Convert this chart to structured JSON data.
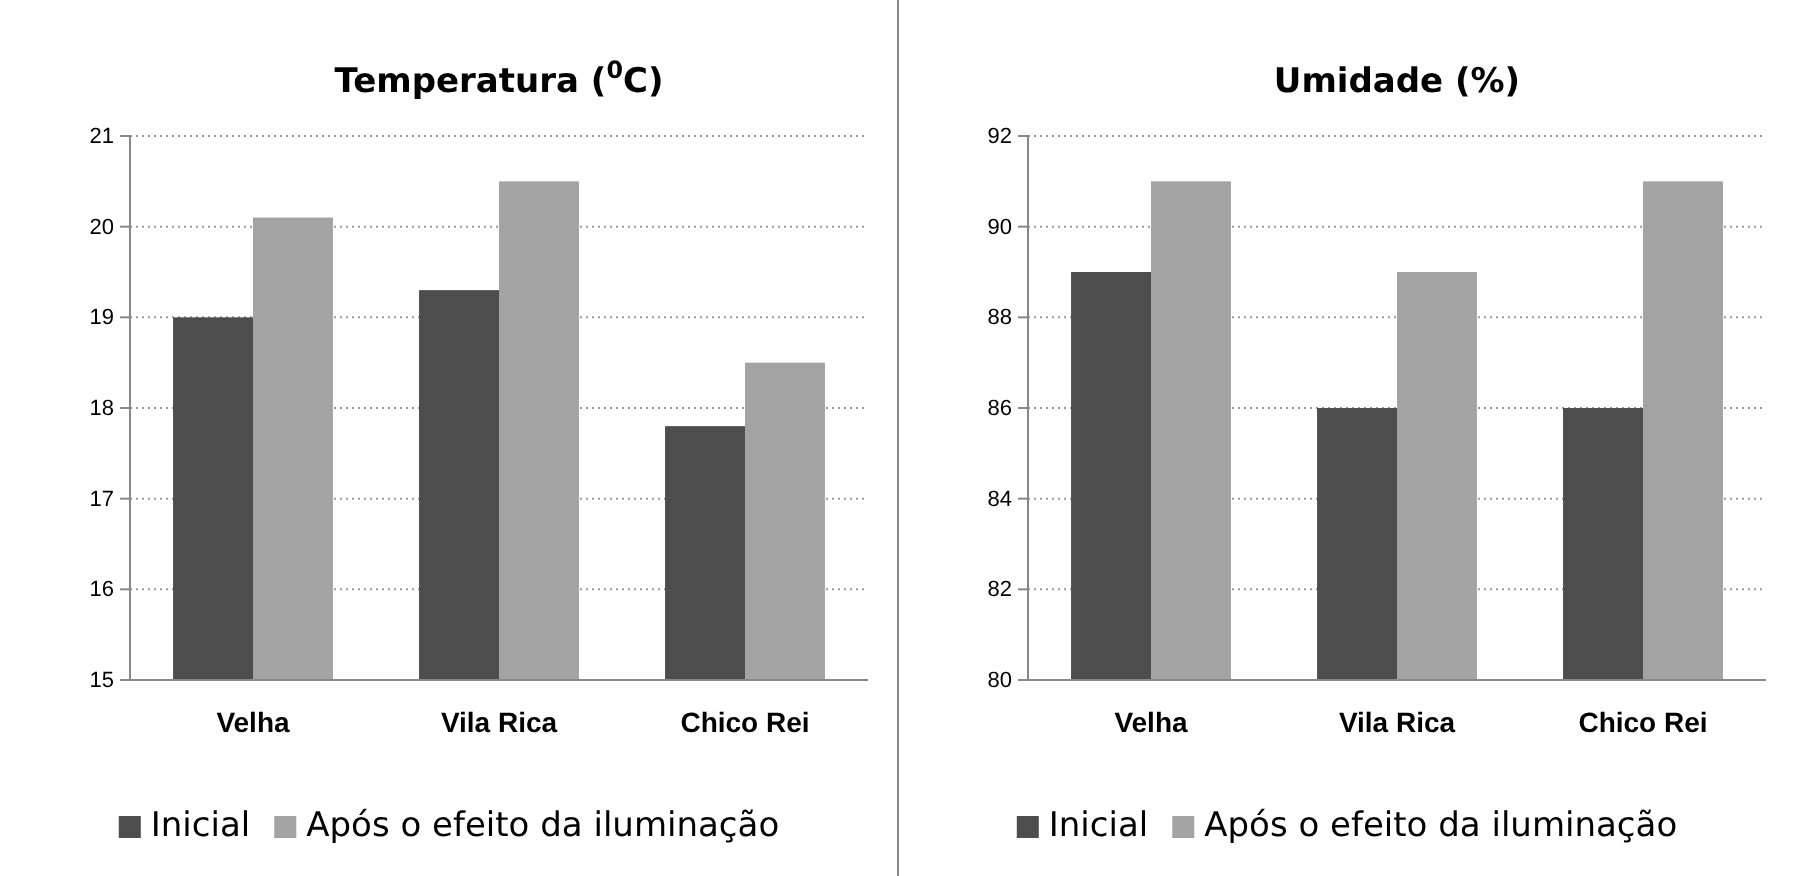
{
  "chart_data": [
    {
      "type": "bar",
      "title": "Temperatura ($^{0}$C)",
      "categories": [
        "Velha",
        "Vila Rica",
        "Chico Rei"
      ],
      "series": [
        {
          "name": "Inicial",
          "color": "#4d4d4d",
          "values": [
            19.0,
            19.3,
            17.8
          ]
        },
        {
          "name": "Após o efeito da iluminação",
          "color": "#a3a3a3",
          "values": [
            20.1,
            20.5,
            18.5
          ]
        }
      ],
      "ylim": [
        15,
        21
      ],
      "yticks": [
        15,
        16,
        17,
        18,
        19,
        20,
        21
      ],
      "grid": "y",
      "legend": "bottom"
    },
    {
      "type": "bar",
      "title": "Umidade (%)",
      "categories": [
        "Velha",
        "Vila Rica",
        "Chico Rei"
      ],
      "series": [
        {
          "name": "Inicial",
          "color": "#4d4d4d",
          "values": [
            89,
            86,
            86
          ]
        },
        {
          "name": "Após o efeito da iluminação",
          "color": "#a3a3a3",
          "values": [
            91,
            89,
            91
          ]
        }
      ],
      "ylim": [
        80,
        92
      ],
      "yticks": [
        80,
        82,
        84,
        86,
        88,
        90,
        92
      ],
      "grid": "y",
      "legend": "bottom"
    }
  ]
}
